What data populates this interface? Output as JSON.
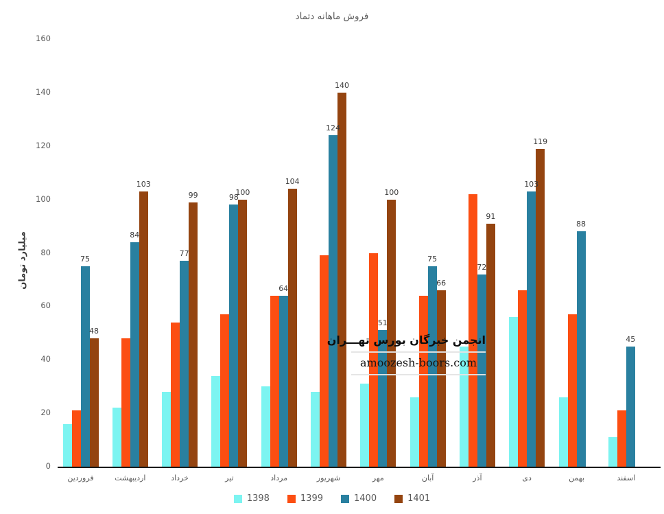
{
  "chart_data": {
    "type": "bar",
    "title": "فروش ماهانه دتماد",
    "ylabel": "میلیارد تومان",
    "xlabel": "",
    "ylim": [
      0,
      160
    ],
    "ytick_step": 20,
    "grid": false,
    "legend_position": "bottom",
    "categories": [
      "فروردین",
      "اردیبهشت",
      "خرداد",
      "تیر",
      "مرداد",
      "شهریور",
      "مهر",
      "آبان",
      "آذر",
      "دی",
      "بهمن",
      "اسفند"
    ],
    "series": [
      {
        "name": "1398",
        "color": "#7cf4f1",
        "show_labels": false,
        "values": [
          16,
          22,
          28,
          34,
          30,
          28,
          31,
          26,
          45,
          56,
          26,
          11
        ]
      },
      {
        "name": "1399",
        "color": "#fc4e12",
        "show_labels": false,
        "values": [
          21,
          48,
          54,
          57,
          64,
          79,
          80,
          64,
          102,
          66,
          57,
          21
        ]
      },
      {
        "name": "1400",
        "color": "#2980a0",
        "show_labels": true,
        "values": [
          75,
          84,
          77,
          98,
          64,
          124,
          51,
          75,
          72,
          103,
          88,
          45
        ]
      },
      {
        "name": "1401",
        "color": "#944410",
        "show_labels": true,
        "values": [
          48,
          103,
          99,
          100,
          104,
          140,
          100,
          66,
          91,
          119,
          null,
          null
        ]
      }
    ]
  },
  "watermark": {
    "title": "انجمن خبرگان بورس تهـــران",
    "url": "amoozesh-boors.com"
  }
}
